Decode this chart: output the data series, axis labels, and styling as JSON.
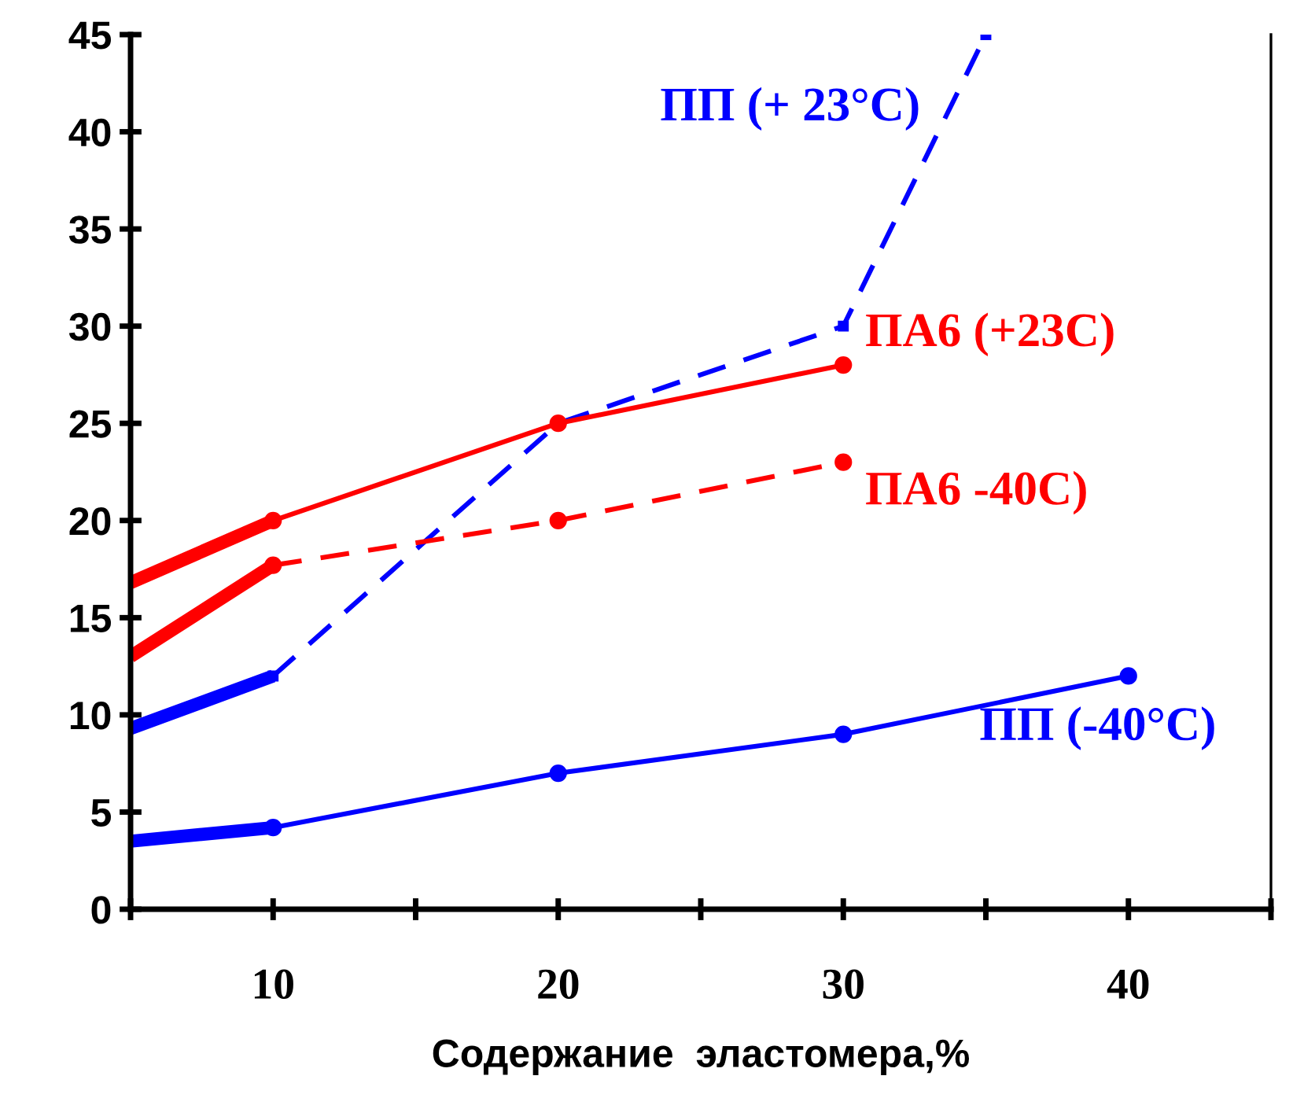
{
  "chart_data": {
    "type": "line",
    "xlabel": "Содержание  эластомера,%",
    "xlim": [
      5,
      45
    ],
    "xticks": [
      {
        "value": 5,
        "label": null
      },
      10,
      {
        "value": 15,
        "label": null
      },
      20,
      {
        "value": 25,
        "label": null
      },
      30,
      {
        "value": 35,
        "label": null
      },
      40,
      {
        "value": 45,
        "label": null
      }
    ],
    "ylim": [
      0,
      45
    ],
    "yticks": [
      0,
      5,
      10,
      15,
      20,
      25,
      30,
      35,
      40,
      45
    ],
    "grid": false,
    "legend": false,
    "series": [
      {
        "name": "ПП (+ 23°С)",
        "color": "#0000ff",
        "line_style": "dashed",
        "marker": "square",
        "x": [
          5,
          10,
          20,
          30,
          35
        ],
        "values": [
          9.3,
          12,
          25,
          30,
          45
        ]
      },
      {
        "name": "ПА6 (+23С)",
        "color": "#ff0000",
        "line_style": "solid",
        "marker": "circle",
        "x": [
          5,
          10,
          20,
          30
        ],
        "values": [
          16.8,
          20,
          25,
          28
        ]
      },
      {
        "name": "ПА6 -40С)",
        "color": "#ff0000",
        "line_style": "dashed",
        "marker": "circle",
        "x": [
          5,
          10,
          20,
          30
        ],
        "values": [
          13,
          17.7,
          20,
          23
        ]
      },
      {
        "name": "ПП (-40°С)",
        "color": "#0000ff",
        "line_style": "solid",
        "marker": "circle",
        "x": [
          5,
          10,
          20,
          30,
          40
        ],
        "values": [
          3.5,
          4.2,
          7,
          9,
          12
        ]
      }
    ]
  }
}
